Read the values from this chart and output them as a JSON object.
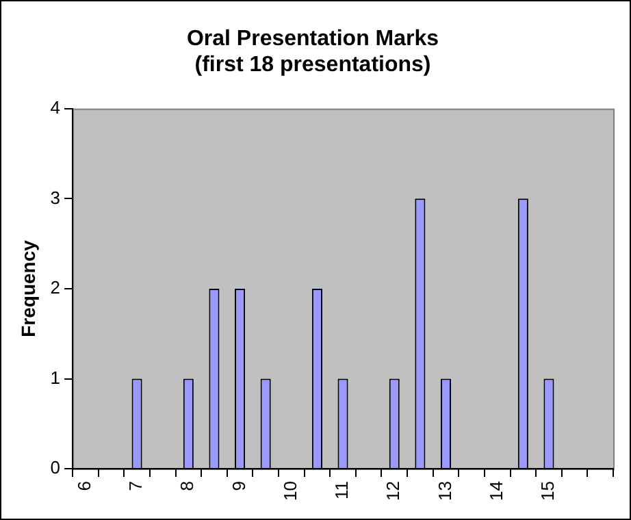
{
  "chart_data": {
    "type": "bar",
    "title": "Oral Presentation Marks\n(first 18 presentations)",
    "ylabel": "Frequency",
    "categories": [
      "6",
      null,
      "7",
      null,
      "8",
      null,
      "9",
      null,
      "10",
      null,
      "11",
      null,
      "12",
      null,
      "13",
      null,
      "14",
      null,
      "15",
      null,
      null
    ],
    "values": [
      0,
      0,
      1,
      0,
      1,
      2,
      2,
      1,
      0,
      2,
      1,
      0,
      1,
      3,
      1,
      0,
      0,
      3,
      1,
      0,
      0
    ],
    "color": "#9999ff",
    "ylim": [
      0,
      4
    ],
    "yticks": [
      0,
      1,
      2,
      3,
      4
    ]
  }
}
